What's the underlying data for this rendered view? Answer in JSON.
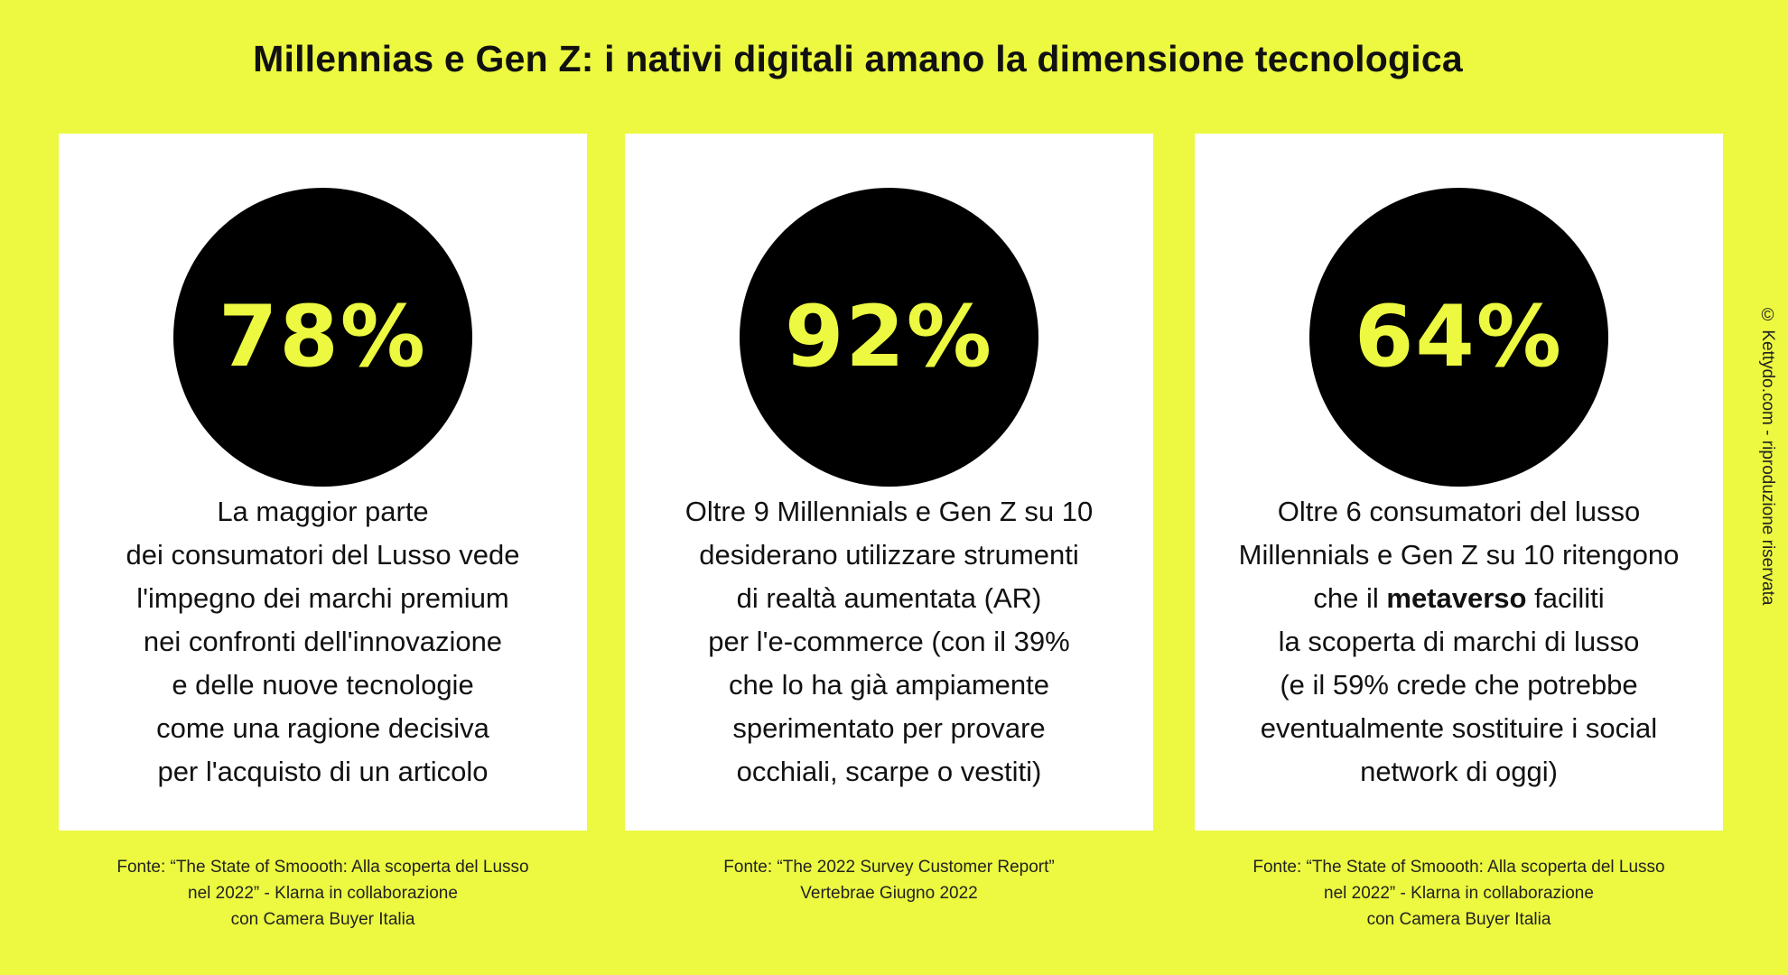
{
  "title": "Millennias e Gen Z: i nativi digitali amano la dimensione tecnologica",
  "colors": {
    "background": "#ecf940",
    "accent": "#ecf940",
    "circle": "#000000",
    "card": "#ffffff",
    "text": "#111111"
  },
  "cards": [
    {
      "stat": "78%",
      "lines": [
        "La maggior parte",
        "dei consumatori del Lusso vede",
        "l'impegno dei marchi premium",
        "nei confronti dell'innovazione",
        "e delle nuove tecnologie",
        "come una ragione decisiva",
        "per l'acquisto di un articolo"
      ],
      "source_lines": [
        "Fonte: “The State of Smoooth: Alla scoperta del Lusso",
        "nel 2022” - Klarna in collaborazione",
        "con Camera Buyer Italia"
      ]
    },
    {
      "stat": "92%",
      "lines": [
        "Oltre 9 Millennials e Gen Z su 10",
        "desiderano utilizzare strumenti",
        "di realtà aumentata (AR)",
        "per l'e-commerce (con il 39%",
        "che lo ha già ampiamente",
        "sperimentato per provare",
        "occhiali, scarpe o vestiti)"
      ],
      "source_lines": [
        "Fonte: “The 2022 Survey Customer Report”",
        "Vertebrae Giugno 2022"
      ]
    },
    {
      "stat": "64%",
      "lines": [
        "Oltre 6 consumatori del lusso",
        "Millennials e Gen Z su 10 ritengono",
        "",
        "la scoperta di marchi di lusso",
        "(e il 59% crede che potrebbe",
        "eventualmente sostituire i social",
        "network di oggi)"
      ],
      "line3_before": "che il",
      "line3_bold": "metaverso",
      "line3_after": "faciliti",
      "source_lines": [
        "Fonte: “The State of Smoooth: Alla scoperta del Lusso",
        "nel 2022” - Klarna in collaborazione",
        "con Camera Buyer Italia"
      ]
    }
  ],
  "copyright": "© Kettydo.com - riproduzione riservata"
}
